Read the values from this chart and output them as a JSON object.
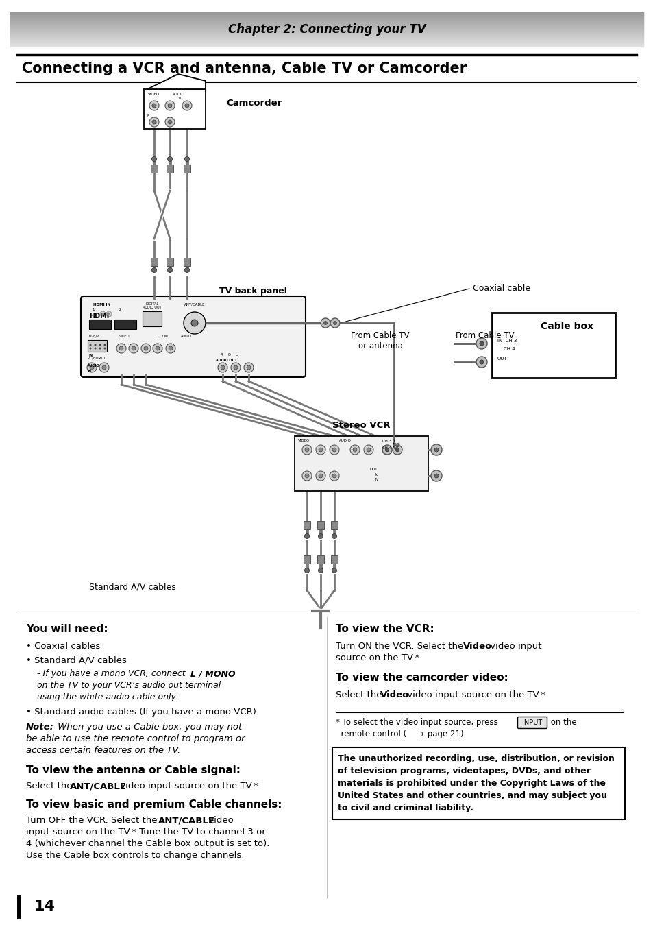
{
  "page_bg": "#ffffff",
  "header_text": "Chapter 2: Connecting your TV",
  "section_title": "Connecting a VCR and antenna, Cable TV or Camcorder",
  "page_number": "14",
  "diagram_labels": {
    "camcorder": "Camcorder",
    "tv_back_panel": "TV back panel",
    "coaxial_cable": "Coaxial cable",
    "from_cable_tv_or_antenna": "From Cable TV\nor antenna",
    "from_cable_tv": "From Cable TV",
    "stereo_vcr": "Stereo VCR",
    "cable_box": "Cable box",
    "standard_av_cables": "Standard A/V cables"
  }
}
